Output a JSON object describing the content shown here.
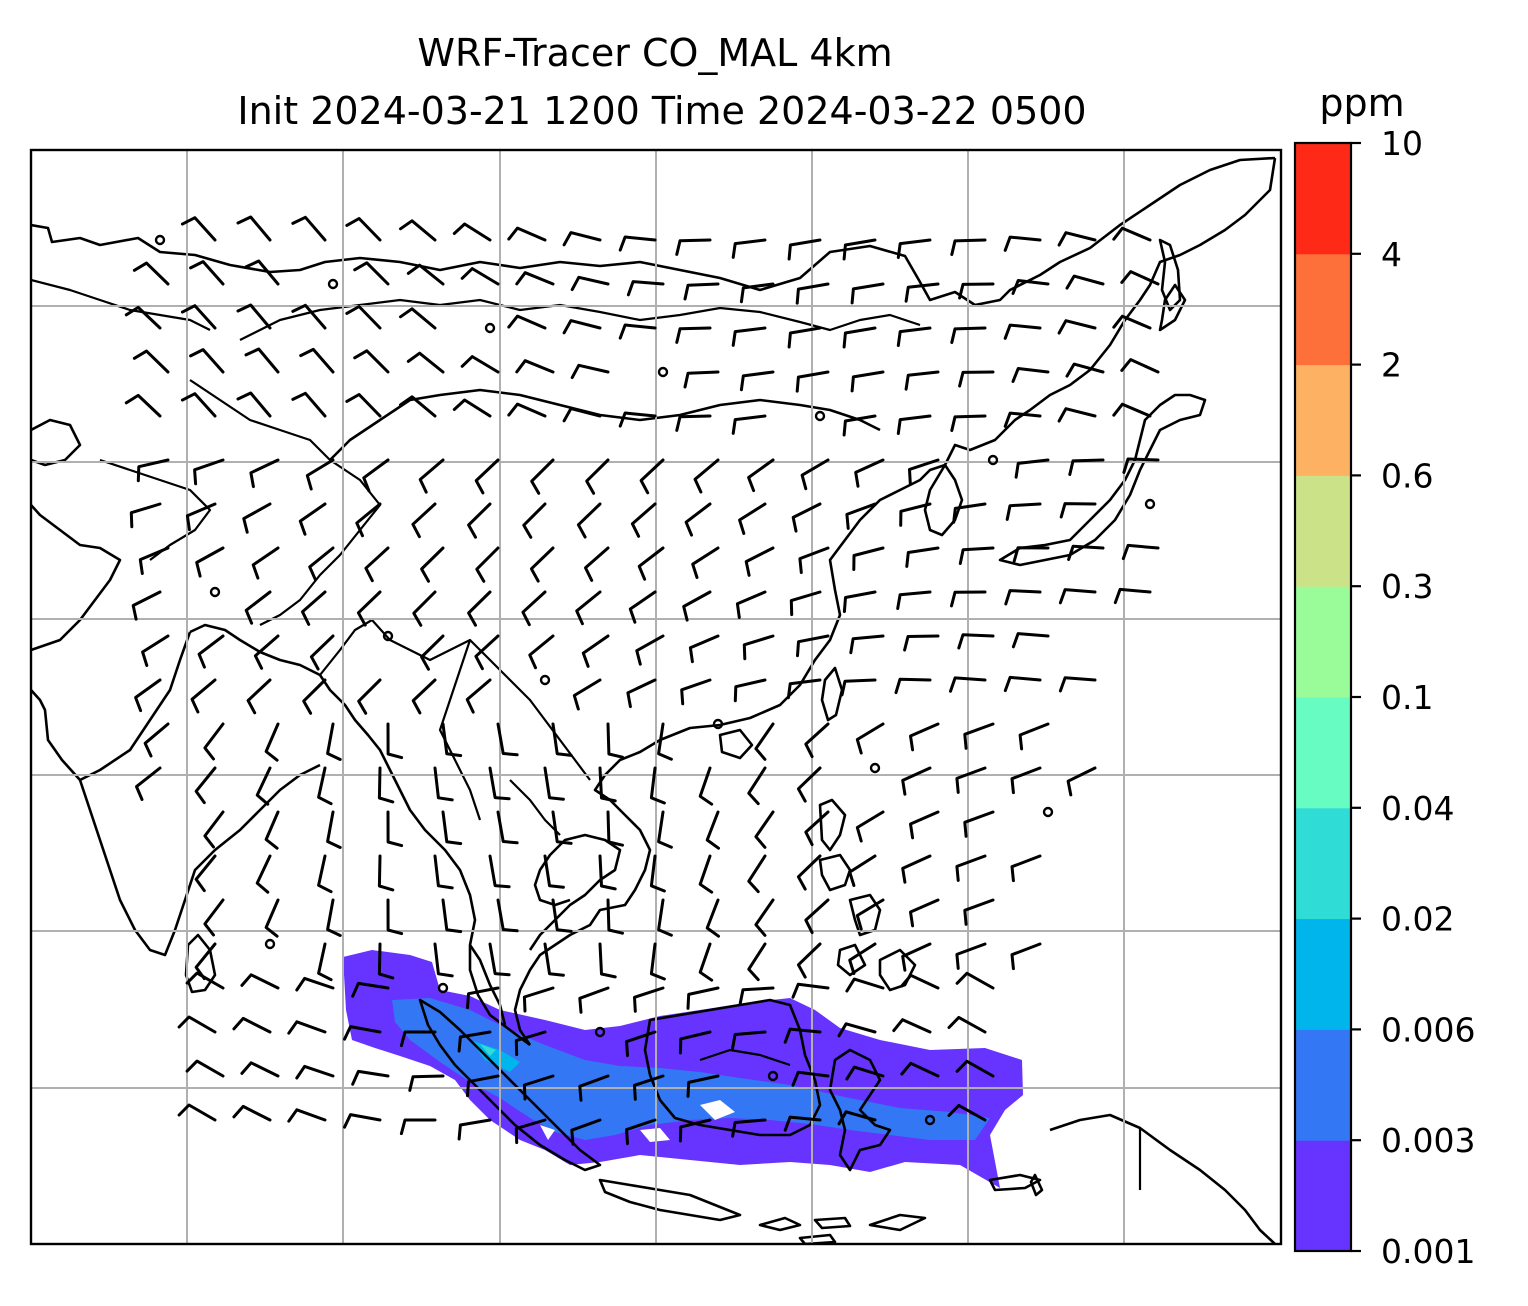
{
  "title": {
    "line1": "WRF-Tracer CO_MAL 4km",
    "line2": "Init 2024-03-21 1200 Time 2024-03-22 0500"
  },
  "colorbar": {
    "unit": "ppm",
    "levels": [
      "0.001",
      "0.003",
      "0.006",
      "0.02",
      "0.04",
      "0.1",
      "0.3",
      "0.6",
      "2",
      "4",
      "10"
    ],
    "colors": [
      "#6633ff",
      "#3377f5",
      "#00b4ec",
      "#30ddd6",
      "#66fcc2",
      "#99fc99",
      "#cce288",
      "#fcb262",
      "#fd7039",
      "#fe2a17"
    ]
  },
  "map": {
    "gridlines": "on",
    "field": "CO_MAL tracer concentration",
    "overlay": "wind barbs",
    "coastline_color": "#000000",
    "grid_color": "#b0b0b0"
  }
}
